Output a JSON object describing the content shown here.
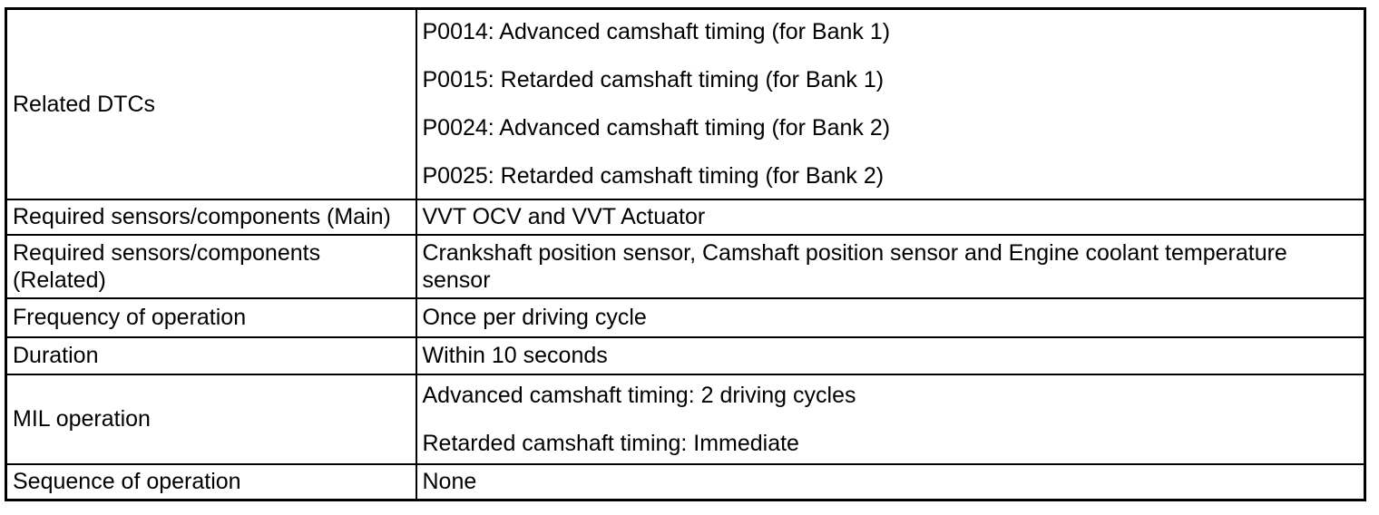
{
  "colors": {
    "background": "#ffffff",
    "text": "#000000",
    "border": "#000000"
  },
  "table": {
    "rows": [
      {
        "label": "Related DTCs",
        "values": [
          "P0014: Advanced camshaft timing (for Bank 1)",
          "P0015: Retarded camshaft timing (for Bank 1)",
          "P0024: Advanced camshaft timing (for Bank 2)",
          "P0025: Retarded camshaft timing (for Bank 2)"
        ]
      },
      {
        "label": "Required sensors/components (Main)",
        "values": [
          "VVT OCV and VVT Actuator"
        ]
      },
      {
        "label": "Required sensors/components (Related)",
        "values": [
          "Crankshaft position sensor, Camshaft position sensor and Engine coolant temperature sensor"
        ]
      },
      {
        "label": "Frequency of operation",
        "values": [
          "Once per driving cycle"
        ]
      },
      {
        "label": "Duration",
        "values": [
          "Within 10 seconds"
        ]
      },
      {
        "label": "MIL operation",
        "values": [
          "Advanced camshaft timing: 2 driving cycles",
          "Retarded camshaft timing: Immediate"
        ]
      },
      {
        "label": "Sequence of operation",
        "values": [
          "None"
        ]
      }
    ]
  }
}
